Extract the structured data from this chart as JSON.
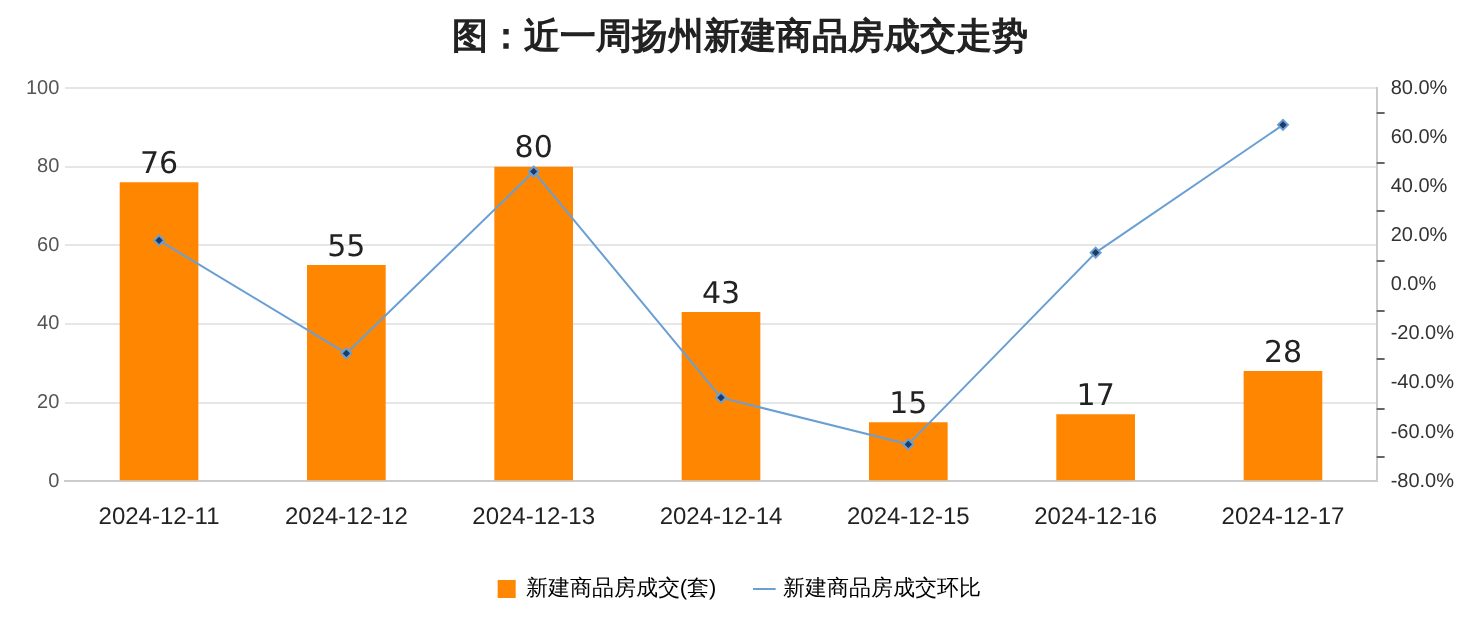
{
  "chart_data": {
    "type": "bar",
    "title": "图：近一周扬州新建商品房成交走势",
    "categories": [
      "2024-12-11",
      "2024-12-12",
      "2024-12-13",
      "2024-12-14",
      "2024-12-15",
      "2024-12-16",
      "2024-12-17"
    ],
    "series": [
      {
        "name": "新建商品房成交(套)",
        "color": "#ff8600",
        "values": [
          76,
          55,
          80,
          43,
          15,
          17,
          28
        ],
        "value_labels": [
          "76",
          "55",
          "80",
          "43",
          "15",
          "17",
          "28"
        ]
      },
      {
        "name": "新建商品房成交环比",
        "type": "line",
        "axis": "y2",
        "color": "#6a9fd4",
        "marker": "diamond",
        "values": [
          18,
          -28,
          46,
          -46,
          -65,
          13,
          65
        ]
      }
    ],
    "ylim": [
      0,
      100
    ],
    "yticks": [
      0,
      20,
      40,
      60,
      80,
      100
    ],
    "y2lim": [
      -80,
      80
    ],
    "y2ticks": [
      {
        "value": -80,
        "label": "-80.0%"
      },
      {
        "value": -60,
        "label": "-60.0%"
      },
      {
        "value": -40,
        "label": "-40.0%"
      },
      {
        "value": -20,
        "label": "-20.0%"
      },
      {
        "value": 0,
        "label": "0.0%"
      },
      {
        "value": 20,
        "label": "20.0%"
      },
      {
        "value": 40,
        "label": "40.0%"
      },
      {
        "value": 60,
        "label": "60.0%"
      },
      {
        "value": 80,
        "label": "80.0%"
      }
    ],
    "grid": "y",
    "legend": "bottom"
  }
}
